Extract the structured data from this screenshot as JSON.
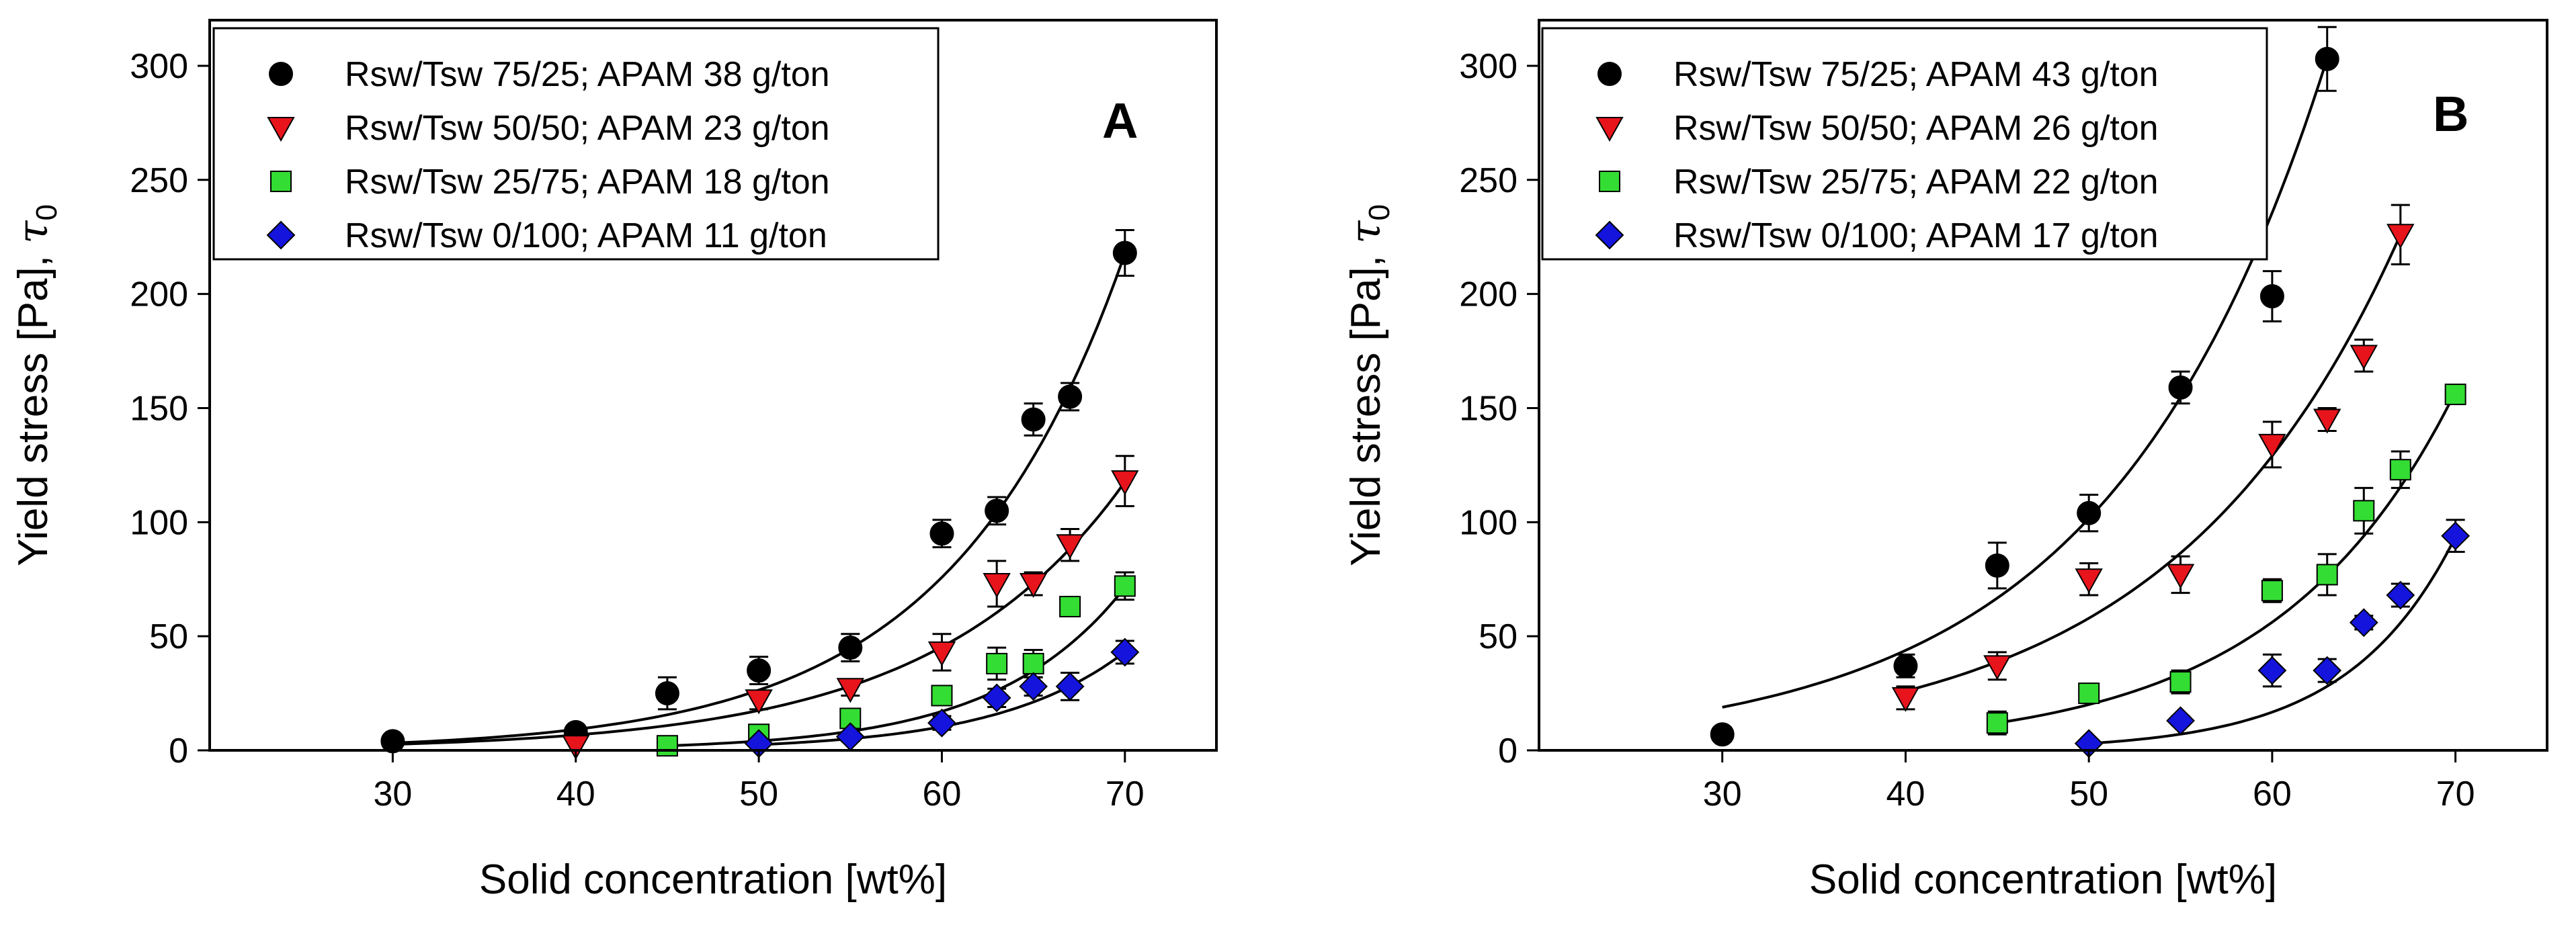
{
  "chart_data": [
    {
      "type": "scatter",
      "panel_label": "A",
      "xlabel": "Solid concentration [wt%]",
      "ylabel": {
        "main": "Yield stress [Pa], ",
        "symbol": "τ",
        "subscript": "0"
      },
      "xlim": [
        20,
        75
      ],
      "ylim": [
        0,
        320
      ],
      "xticks": [
        30,
        40,
        50,
        60,
        70
      ],
      "yticks": [
        0,
        50,
        100,
        150,
        200,
        250,
        300
      ],
      "grid": false,
      "legend_position": "top-left",
      "series": [
        {
          "name": "Rsw/Tsw 75/25; APAM 38 g/ton",
          "marker": "circle",
          "color": "#000000",
          "x": [
            30,
            40,
            45,
            50,
            55,
            60,
            63,
            65,
            67,
            70
          ],
          "y": [
            4,
            8,
            25,
            35,
            45,
            95,
            105,
            145,
            155,
            218
          ],
          "err": [
            2,
            3,
            7,
            6,
            6,
            6,
            6,
            7,
            6,
            10
          ],
          "fit": {
            "x0": 30,
            "x1": 70,
            "a": 3.2,
            "b": 0.1055
          }
        },
        {
          "name": "Rsw/Tsw 50/50; APAM 23 g/ton",
          "marker": "triangle-down",
          "color": "#e8141c",
          "x": [
            40,
            50,
            55,
            60,
            63,
            65,
            67,
            70
          ],
          "y": [
            2,
            22,
            27,
            43,
            73,
            73,
            90,
            118
          ],
          "err": [
            2,
            4,
            3,
            8,
            10,
            5,
            7,
            11
          ],
          "fit": {
            "x0": 30,
            "x1": 70,
            "a": 2.6,
            "b": 0.0953
          }
        },
        {
          "name": "Rsw/Tsw 25/75; APAM 18 g/ton",
          "marker": "square",
          "color": "#33dd33",
          "x": [
            45,
            50,
            55,
            60,
            63,
            65,
            67,
            70
          ],
          "y": [
            2,
            7,
            14,
            24,
            38,
            38,
            63,
            72
          ],
          "err": [
            1,
            2,
            3,
            4,
            7,
            6,
            4,
            6
          ],
          "fit": {
            "x0": 45,
            "x1": 70,
            "a": 2.0,
            "b": 0.143
          }
        },
        {
          "name": "Rsw/Tsw 0/100; APAM 11 g/ton",
          "marker": "diamond",
          "color": "#1414dd",
          "x": [
            50,
            55,
            60,
            63,
            65,
            67,
            70
          ],
          "y": [
            3,
            6,
            12,
            23,
            28,
            28,
            43
          ],
          "err": [
            1,
            2,
            3,
            4,
            4,
            6,
            5
          ],
          "fit": {
            "x0": 50,
            "x1": 70,
            "a": 2.5,
            "b": 0.1424
          }
        }
      ]
    },
    {
      "type": "scatter",
      "panel_label": "B",
      "xlabel": "Solid concentration [wt%]",
      "ylabel": {
        "main": "Yield stress [Pa], ",
        "symbol": "τ",
        "subscript": "0"
      },
      "xlim": [
        20,
        75
      ],
      "ylim": [
        0,
        320
      ],
      "xticks": [
        30,
        40,
        50,
        60,
        70
      ],
      "yticks": [
        0,
        50,
        100,
        150,
        200,
        250,
        300
      ],
      "grid": false,
      "legend_position": "top-left",
      "series": [
        {
          "name": "Rsw/Tsw 75/25; APAM 43 g/ton",
          "marker": "circle",
          "color": "#000000",
          "x": [
            30,
            40,
            45,
            50,
            55,
            60,
            63
          ],
          "y": [
            7,
            37,
            81,
            104,
            159,
            199,
            303
          ],
          "err": [
            3,
            5,
            10,
            8,
            7,
            11,
            14
          ],
          "fit": {
            "x0": 30,
            "x1": 63,
            "a": 18.9,
            "b": 0.0841
          }
        },
        {
          "name": "Rsw/Tsw 50/50; APAM 26 g/ton",
          "marker": "triangle-down",
          "color": "#e8141c",
          "x": [
            40,
            45,
            50,
            55,
            60,
            63,
            65,
            67
          ],
          "y": [
            23,
            37,
            75,
            77,
            134,
            145,
            173,
            226
          ],
          "err": [
            5,
            6,
            7,
            8,
            10,
            5,
            7,
            13
          ],
          "fit": {
            "x0": 40,
            "x1": 67,
            "a": 26.0,
            "b": 0.0801
          }
        },
        {
          "name": "Rsw/Tsw 25/75; APAM 22 g/ton",
          "marker": "square",
          "color": "#33dd33",
          "x": [
            45,
            50,
            55,
            60,
            63,
            65,
            67,
            70
          ],
          "y": [
            12,
            25,
            30,
            70,
            77,
            105,
            123,
            156
          ],
          "err": [
            5,
            2,
            5,
            5,
            9,
            10,
            8,
            3
          ],
          "fit": {
            "x0": 45,
            "x1": 70,
            "a": 12.0,
            "b": 0.1029
          }
        },
        {
          "name": "Rsw/Tsw 0/100; APAM 17 g/ton",
          "marker": "diamond",
          "color": "#1414dd",
          "x": [
            50,
            55,
            60,
            63,
            65,
            67,
            70
          ],
          "y": [
            3,
            13,
            35,
            35,
            56,
            68,
            94
          ],
          "err": [
            1,
            2,
            7,
            5,
            3,
            5,
            7
          ],
          "fit": {
            "x0": 50,
            "x1": 70,
            "a": 3.0,
            "b": 0.172
          }
        }
      ]
    }
  ]
}
